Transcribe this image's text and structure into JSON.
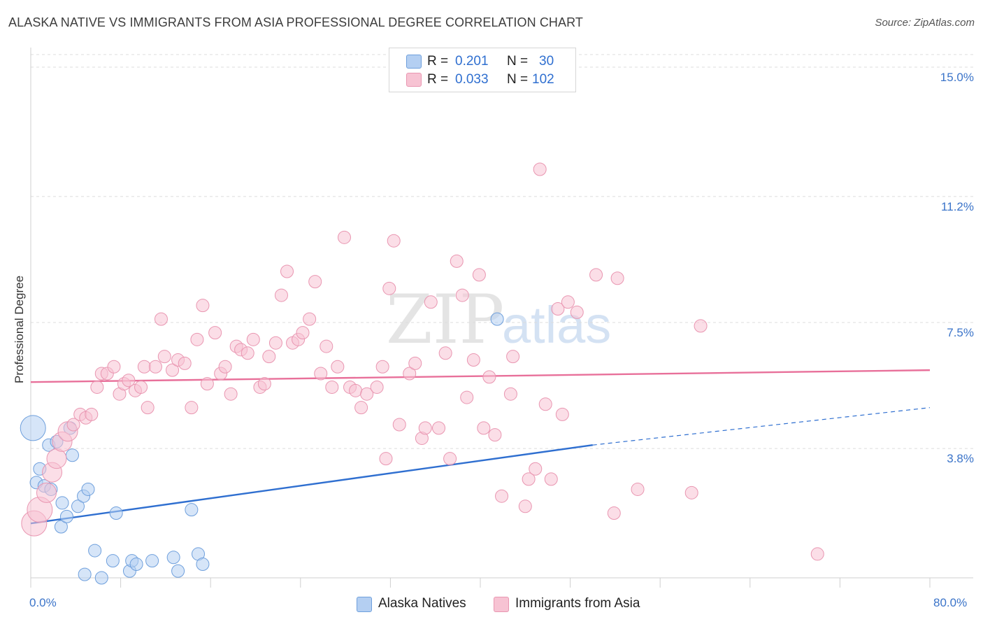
{
  "title": "ALASKA NATIVE VS IMMIGRANTS FROM ASIA PROFESSIONAL DEGREE CORRELATION CHART",
  "source": "Source: ZipAtlas.com",
  "watermark": {
    "zip": "ZIP",
    "atlas": "atlas"
  },
  "colors": {
    "blue_fill": "#b4cff2",
    "blue_stroke": "#6e9fdc",
    "blue_line": "#2f6fd0",
    "pink_fill": "#f7c3d3",
    "pink_stroke": "#e996b1",
    "pink_line": "#e8709a",
    "tick_text": "#3b74c9",
    "grid": "#dcdcdc"
  },
  "legend": {
    "rows": [
      {
        "swatch": "blue",
        "r_label": "R =",
        "r_value": "0.201",
        "n_label": "N =",
        "n_value": "30"
      },
      {
        "swatch": "pink",
        "r_label": "R =",
        "r_value": "0.033",
        "n_label": "N =",
        "n_value": "102"
      }
    ]
  },
  "bottom_legend": [
    {
      "swatch": "blue",
      "label": "Alaska Natives"
    },
    {
      "swatch": "pink",
      "label": "Immigrants from Asia"
    }
  ],
  "chart_data": {
    "type": "scatter",
    "title": "ALASKA NATIVE VS IMMIGRANTS FROM ASIA PROFESSIONAL DEGREE CORRELATION CHART",
    "xlabel": "",
    "ylabel": "Professional Degree",
    "xlim": [
      0,
      80
    ],
    "ylim": [
      0,
      15.0
    ],
    "x_tick_labels": [
      "0.0%",
      "80.0%"
    ],
    "y_ticks": [
      3.8,
      7.5,
      11.2,
      15.0
    ],
    "y_tick_labels": [
      "3.8%",
      "7.5%",
      "11.2%",
      "15.0%"
    ],
    "grid": "horizontal dashed",
    "legend_position": "top-center",
    "series": [
      {
        "name": "Alaska Natives",
        "color": "blue",
        "r": 0.201,
        "n": 30,
        "trend": {
          "x0": 0.0,
          "y0": 1.6,
          "x1": 50.0,
          "y1": 3.9,
          "dashed_to_x": 80.0,
          "dashed_to_y": 5.0
        },
        "points": [
          {
            "x": 0.2,
            "y": 4.4,
            "s": 3
          },
          {
            "x": 0.5,
            "y": 2.8,
            "s": 1
          },
          {
            "x": 0.8,
            "y": 3.2,
            "s": 1
          },
          {
            "x": 1.2,
            "y": 2.7,
            "s": 1
          },
          {
            "x": 1.8,
            "y": 2.6,
            "s": 1
          },
          {
            "x": 1.6,
            "y": 3.9,
            "s": 1
          },
          {
            "x": 2.3,
            "y": 4.0,
            "s": 1
          },
          {
            "x": 2.7,
            "y": 1.5,
            "s": 1
          },
          {
            "x": 2.8,
            "y": 2.2,
            "s": 1
          },
          {
            "x": 3.2,
            "y": 1.8,
            "s": 1
          },
          {
            "x": 3.5,
            "y": 4.4,
            "s": 1
          },
          {
            "x": 3.7,
            "y": 3.6,
            "s": 1
          },
          {
            "x": 4.2,
            "y": 2.1,
            "s": 1
          },
          {
            "x": 4.7,
            "y": 2.4,
            "s": 1
          },
          {
            "x": 5.1,
            "y": 2.6,
            "s": 1
          },
          {
            "x": 4.8,
            "y": 0.1,
            "s": 1
          },
          {
            "x": 5.7,
            "y": 0.8,
            "s": 1
          },
          {
            "x": 6.3,
            "y": 0.0,
            "s": 1
          },
          {
            "x": 7.3,
            "y": 0.5,
            "s": 1
          },
          {
            "x": 7.6,
            "y": 1.9,
            "s": 1
          },
          {
            "x": 8.8,
            "y": 0.2,
            "s": 1
          },
          {
            "x": 9.0,
            "y": 0.5,
            "s": 1
          },
          {
            "x": 9.4,
            "y": 0.4,
            "s": 1
          },
          {
            "x": 10.8,
            "y": 0.5,
            "s": 1
          },
          {
            "x": 12.7,
            "y": 0.6,
            "s": 1
          },
          {
            "x": 13.1,
            "y": 0.2,
            "s": 1
          },
          {
            "x": 14.3,
            "y": 2.0,
            "s": 1
          },
          {
            "x": 14.9,
            "y": 0.7,
            "s": 1
          },
          {
            "x": 15.3,
            "y": 0.4,
            "s": 1
          },
          {
            "x": 41.5,
            "y": 7.6,
            "s": 1
          }
        ]
      },
      {
        "name": "Immigrants from Asia",
        "color": "pink",
        "r": 0.033,
        "n": 102,
        "trend": {
          "x0": 0.0,
          "y0": 5.75,
          "x1": 80.0,
          "y1": 6.1
        },
        "points": [
          {
            "x": 0.3,
            "y": 1.6,
            "s": 3
          },
          {
            "x": 0.8,
            "y": 2.0,
            "s": 3
          },
          {
            "x": 1.4,
            "y": 2.5,
            "s": 2
          },
          {
            "x": 1.9,
            "y": 3.1,
            "s": 2
          },
          {
            "x": 2.3,
            "y": 3.5,
            "s": 2
          },
          {
            "x": 2.8,
            "y": 4.0,
            "s": 2
          },
          {
            "x": 3.3,
            "y": 4.3,
            "s": 2
          },
          {
            "x": 3.8,
            "y": 4.5,
            "s": 1
          },
          {
            "x": 4.4,
            "y": 4.8,
            "s": 1
          },
          {
            "x": 4.9,
            "y": 4.7,
            "s": 1
          },
          {
            "x": 5.4,
            "y": 4.8,
            "s": 1
          },
          {
            "x": 5.9,
            "y": 5.6,
            "s": 1
          },
          {
            "x": 6.3,
            "y": 6.0,
            "s": 1
          },
          {
            "x": 6.8,
            "y": 6.0,
            "s": 1
          },
          {
            "x": 7.4,
            "y": 6.2,
            "s": 1
          },
          {
            "x": 7.9,
            "y": 5.4,
            "s": 1
          },
          {
            "x": 8.3,
            "y": 5.7,
            "s": 1
          },
          {
            "x": 8.7,
            "y": 5.8,
            "s": 1
          },
          {
            "x": 9.3,
            "y": 5.5,
            "s": 1
          },
          {
            "x": 9.8,
            "y": 5.6,
            "s": 1
          },
          {
            "x": 10.4,
            "y": 5.0,
            "s": 1
          },
          {
            "x": 10.1,
            "y": 6.2,
            "s": 1
          },
          {
            "x": 11.1,
            "y": 6.2,
            "s": 1
          },
          {
            "x": 11.9,
            "y": 6.5,
            "s": 1
          },
          {
            "x": 11.6,
            "y": 7.6,
            "s": 1
          },
          {
            "x": 12.6,
            "y": 6.1,
            "s": 1
          },
          {
            "x": 13.1,
            "y": 6.4,
            "s": 1
          },
          {
            "x": 13.7,
            "y": 6.3,
            "s": 1
          },
          {
            "x": 14.3,
            "y": 5.0,
            "s": 1
          },
          {
            "x": 14.8,
            "y": 7.0,
            "s": 1
          },
          {
            "x": 15.3,
            "y": 8.0,
            "s": 1
          },
          {
            "x": 15.7,
            "y": 5.7,
            "s": 1
          },
          {
            "x": 16.4,
            "y": 7.2,
            "s": 1
          },
          {
            "x": 16.9,
            "y": 6.0,
            "s": 1
          },
          {
            "x": 17.3,
            "y": 6.2,
            "s": 1
          },
          {
            "x": 17.8,
            "y": 5.4,
            "s": 1
          },
          {
            "x": 18.3,
            "y": 6.8,
            "s": 1
          },
          {
            "x": 18.7,
            "y": 6.7,
            "s": 1
          },
          {
            "x": 19.3,
            "y": 6.6,
            "s": 1
          },
          {
            "x": 19.8,
            "y": 7.0,
            "s": 1
          },
          {
            "x": 20.4,
            "y": 5.6,
            "s": 1
          },
          {
            "x": 20.8,
            "y": 5.7,
            "s": 1
          },
          {
            "x": 21.2,
            "y": 6.5,
            "s": 1
          },
          {
            "x": 21.8,
            "y": 6.9,
            "s": 1
          },
          {
            "x": 22.3,
            "y": 8.3,
            "s": 1
          },
          {
            "x": 22.8,
            "y": 9.0,
            "s": 1
          },
          {
            "x": 23.3,
            "y": 6.9,
            "s": 1
          },
          {
            "x": 23.8,
            "y": 7.0,
            "s": 1
          },
          {
            "x": 24.2,
            "y": 7.2,
            "s": 1
          },
          {
            "x": 24.8,
            "y": 7.6,
            "s": 1
          },
          {
            "x": 25.3,
            "y": 8.7,
            "s": 1
          },
          {
            "x": 25.8,
            "y": 6.0,
            "s": 1
          },
          {
            "x": 26.3,
            "y": 6.8,
            "s": 1
          },
          {
            "x": 26.8,
            "y": 5.6,
            "s": 1
          },
          {
            "x": 27.3,
            "y": 6.2,
            "s": 1
          },
          {
            "x": 27.9,
            "y": 10.0,
            "s": 1
          },
          {
            "x": 28.4,
            "y": 5.6,
            "s": 1
          },
          {
            "x": 28.9,
            "y": 5.5,
            "s": 1
          },
          {
            "x": 29.4,
            "y": 5.0,
            "s": 1
          },
          {
            "x": 29.9,
            "y": 5.4,
            "s": 1
          },
          {
            "x": 30.8,
            "y": 5.6,
            "s": 1
          },
          {
            "x": 31.3,
            "y": 6.2,
            "s": 1
          },
          {
            "x": 31.6,
            "y": 3.5,
            "s": 1
          },
          {
            "x": 31.9,
            "y": 8.5,
            "s": 1
          },
          {
            "x": 32.3,
            "y": 9.9,
            "s": 1
          },
          {
            "x": 32.8,
            "y": 4.5,
            "s": 1
          },
          {
            "x": 33.7,
            "y": 6.0,
            "s": 1
          },
          {
            "x": 34.2,
            "y": 6.3,
            "s": 1
          },
          {
            "x": 34.8,
            "y": 4.1,
            "s": 1
          },
          {
            "x": 35.1,
            "y": 4.4,
            "s": 1
          },
          {
            "x": 35.6,
            "y": 8.1,
            "s": 1
          },
          {
            "x": 36.3,
            "y": 4.4,
            "s": 1
          },
          {
            "x": 36.9,
            "y": 6.6,
            "s": 1
          },
          {
            "x": 37.3,
            "y": 3.5,
            "s": 1
          },
          {
            "x": 37.9,
            "y": 9.3,
            "s": 1
          },
          {
            "x": 38.4,
            "y": 8.3,
            "s": 1
          },
          {
            "x": 38.8,
            "y": 5.3,
            "s": 1
          },
          {
            "x": 39.4,
            "y": 6.4,
            "s": 1
          },
          {
            "x": 39.9,
            "y": 8.9,
            "s": 1
          },
          {
            "x": 40.3,
            "y": 4.4,
            "s": 1
          },
          {
            "x": 40.8,
            "y": 5.9,
            "s": 1
          },
          {
            "x": 41.3,
            "y": 4.2,
            "s": 1
          },
          {
            "x": 41.9,
            "y": 2.4,
            "s": 1
          },
          {
            "x": 42.7,
            "y": 5.4,
            "s": 1
          },
          {
            "x": 42.9,
            "y": 6.5,
            "s": 1
          },
          {
            "x": 44.0,
            "y": 2.1,
            "s": 1
          },
          {
            "x": 44.3,
            "y": 2.9,
            "s": 1
          },
          {
            "x": 44.9,
            "y": 3.2,
            "s": 1
          },
          {
            "x": 45.3,
            "y": 12.0,
            "s": 1
          },
          {
            "x": 45.8,
            "y": 5.1,
            "s": 1
          },
          {
            "x": 46.3,
            "y": 2.9,
            "s": 1
          },
          {
            "x": 46.9,
            "y": 7.9,
            "s": 1
          },
          {
            "x": 47.3,
            "y": 4.8,
            "s": 1
          },
          {
            "x": 47.8,
            "y": 8.1,
            "s": 1
          },
          {
            "x": 48.6,
            "y": 7.8,
            "s": 1
          },
          {
            "x": 50.3,
            "y": 8.9,
            "s": 1
          },
          {
            "x": 51.9,
            "y": 1.9,
            "s": 1
          },
          {
            "x": 52.2,
            "y": 8.8,
            "s": 1
          },
          {
            "x": 54.0,
            "y": 2.6,
            "s": 1
          },
          {
            "x": 58.8,
            "y": 2.5,
            "s": 1
          },
          {
            "x": 59.6,
            "y": 7.4,
            "s": 1
          },
          {
            "x": 70.0,
            "y": 0.7,
            "s": 1
          }
        ]
      }
    ]
  }
}
